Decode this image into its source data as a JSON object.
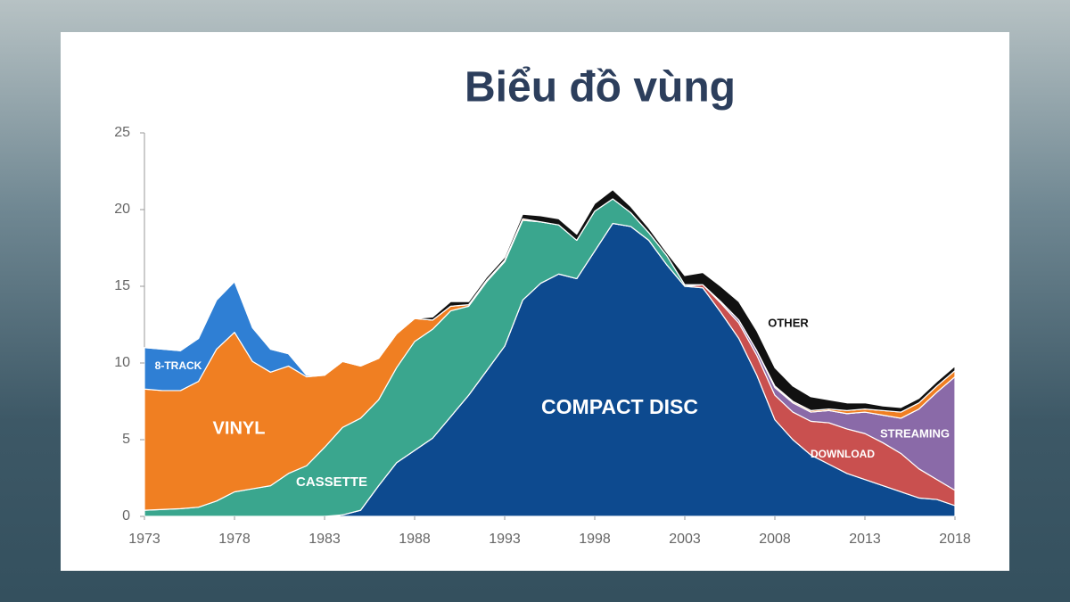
{
  "chart_data": {
    "type": "stacked-area",
    "title": "Biểu đồ vùng",
    "x": [
      1973,
      1974,
      1975,
      1976,
      1977,
      1978,
      1979,
      1980,
      1981,
      1982,
      1983,
      1984,
      1985,
      1986,
      1987,
      1988,
      1989,
      1990,
      1991,
      1992,
      1993,
      1994,
      1995,
      1996,
      1997,
      1998,
      1999,
      2000,
      2001,
      2002,
      2003,
      2004,
      2005,
      2006,
      2007,
      2008,
      2009,
      2010,
      2011,
      2012,
      2013,
      2014,
      2015,
      2016,
      2017,
      2018
    ],
    "xlim": [
      1973,
      2018
    ],
    "xticks": [
      1973,
      1978,
      1983,
      1988,
      1993,
      1998,
      2003,
      2008,
      2013,
      2018
    ],
    "ylim": [
      0,
      25
    ],
    "yticks": [
      0,
      5,
      10,
      15,
      20,
      25
    ],
    "series": [
      {
        "name": "COMPACT DISC",
        "color": "#0d4a8f",
        "values": [
          0,
          0,
          0,
          0,
          0,
          0,
          0,
          0,
          0,
          0,
          0,
          0.1,
          0.4,
          2.0,
          3.5,
          4.3,
          5.1,
          6.5,
          7.9,
          9.5,
          11.1,
          14.1,
          15.2,
          15.8,
          15.5,
          17.3,
          19.1,
          18.9,
          18.0,
          16.4,
          15.0,
          14.9,
          13.3,
          11.6,
          9.2,
          6.3,
          5.0,
          4.0,
          3.4,
          2.8,
          2.4,
          2.0,
          1.6,
          1.2,
          1.1,
          0.7
        ]
      },
      {
        "name": "DOWNLOAD",
        "color": "#c9504f",
        "values": [
          0,
          0,
          0,
          0,
          0,
          0,
          0,
          0,
          0,
          0,
          0,
          0,
          0,
          0,
          0,
          0,
          0,
          0,
          0,
          0,
          0,
          0,
          0,
          0,
          0,
          0,
          0,
          0,
          0,
          0,
          0,
          0.2,
          0.6,
          1.0,
          1.3,
          1.6,
          1.8,
          2.2,
          2.7,
          2.9,
          3.0,
          2.8,
          2.5,
          1.9,
          1.3,
          1.0
        ]
      },
      {
        "name": "STREAMING",
        "color": "#8a6aa8",
        "values": [
          0,
          0,
          0,
          0,
          0,
          0,
          0,
          0,
          0,
          0,
          0,
          0,
          0,
          0,
          0,
          0,
          0,
          0,
          0,
          0,
          0,
          0,
          0,
          0,
          0,
          0,
          0,
          0,
          0,
          0,
          0,
          0,
          0.1,
          0.2,
          0.3,
          0.5,
          0.6,
          0.6,
          0.8,
          1.0,
          1.4,
          1.8,
          2.3,
          3.9,
          5.7,
          7.4
        ]
      },
      {
        "name": "CASSETTE",
        "color": "#3aa68e",
        "values": [
          0.4,
          0.45,
          0.5,
          0.6,
          1.0,
          1.6,
          1.8,
          2.0,
          2.8,
          3.3,
          4.5,
          5.7,
          6.0,
          5.6,
          6.2,
          7.1,
          7.1,
          6.9,
          5.8,
          5.8,
          5.5,
          5.2,
          4.0,
          3.2,
          2.5,
          2.6,
          1.6,
          0.9,
          0.5,
          0.6,
          0.1,
          0,
          0,
          0,
          0,
          0,
          0,
          0,
          0,
          0,
          0,
          0,
          0,
          0,
          0,
          0
        ]
      },
      {
        "name": "VINYL",
        "color": "#f07f22",
        "values": [
          7.9,
          7.75,
          7.7,
          8.2,
          9.9,
          10.4,
          8.3,
          7.4,
          7.0,
          5.8,
          4.7,
          4.3,
          3.4,
          2.7,
          2.2,
          1.5,
          0.6,
          0.3,
          0.1,
          0.1,
          0.1,
          0.1,
          0,
          0,
          0,
          0,
          0,
          0,
          0,
          0,
          0,
          0,
          0,
          0,
          0,
          0.1,
          0.1,
          0.1,
          0.1,
          0.2,
          0.2,
          0.3,
          0.4,
          0.4,
          0.4,
          0.4
        ]
      },
      {
        "name": "8-TRACK",
        "color": "#2f7fd4",
        "values": [
          2.7,
          2.7,
          2.6,
          2.8,
          3.2,
          3.3,
          2.2,
          1.5,
          0.8,
          0.1,
          0,
          0,
          0,
          0,
          0,
          0,
          0,
          0,
          0,
          0,
          0,
          0,
          0,
          0,
          0,
          0,
          0,
          0,
          0,
          0,
          0,
          0,
          0,
          0,
          0,
          0,
          0,
          0,
          0,
          0,
          0,
          0,
          0,
          0,
          0,
          0
        ]
      },
      {
        "name": "OTHER",
        "color": "#111111",
        "values": [
          0,
          0,
          0,
          0,
          0,
          0,
          0,
          0,
          0,
          0,
          0,
          0,
          0,
          0,
          0,
          0,
          0.2,
          0.3,
          0.2,
          0.2,
          0.2,
          0.3,
          0.4,
          0.4,
          0.4,
          0.5,
          0.6,
          0.4,
          0.3,
          0.2,
          0.6,
          0.8,
          1.0,
          1.2,
          1.3,
          1.2,
          1.0,
          0.9,
          0.6,
          0.5,
          0.4,
          0.3,
          0.3,
          0.3,
          0.3,
          0.3
        ]
      }
    ]
  }
}
